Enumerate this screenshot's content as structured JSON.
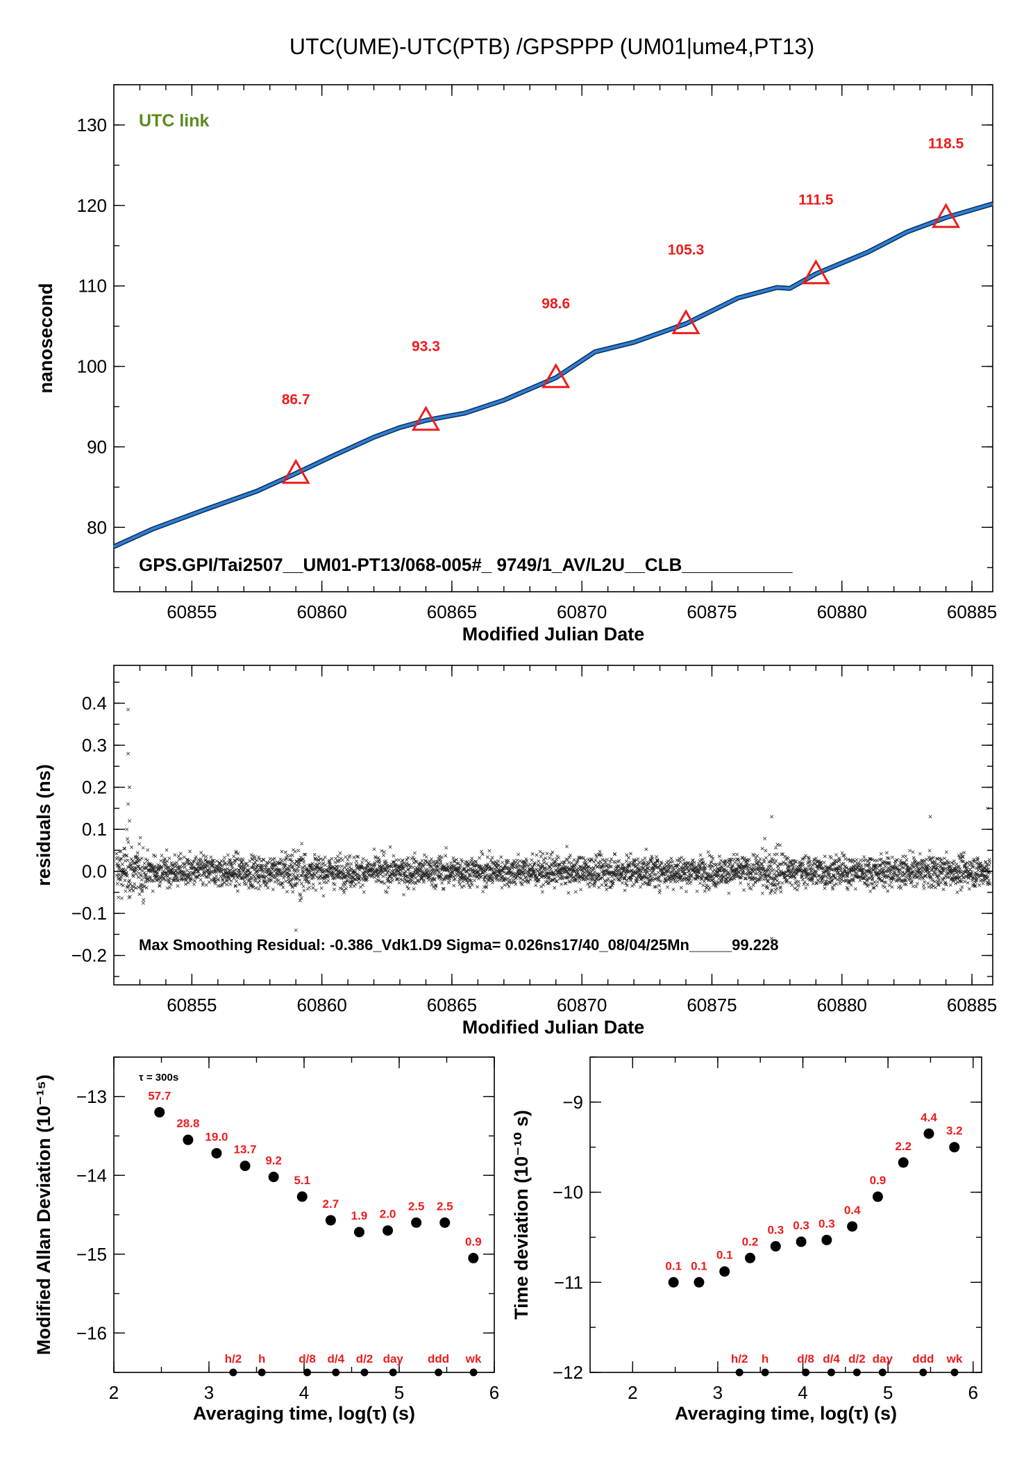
{
  "title": "UTC(UME)-UTC(PTB)  /GPSPPP  (UM01|ume4,PT13)",
  "colors": {
    "line": "#2e7fd0",
    "triangle": "#ee1c1c",
    "green": "#5a8a1e",
    "red": "#ee1c1c",
    "black": "#000000"
  },
  "chart_data": [
    {
      "type": "line",
      "name": "top",
      "legend_text": "UTC link",
      "info_text": "GPS.GPI/Tai2507__UM01-PT13/068-005#_  9749/1_AV/L2U__CLB___________",
      "xlabel": "Modified Julian Date",
      "ylabel": "nanosecond",
      "xlim": [
        60852.0,
        60885.8
      ],
      "ylim": [
        72.0,
        135.0
      ],
      "xticks": [
        60855,
        60860,
        60865,
        60870,
        60875,
        60880,
        60885
      ],
      "yticks": [
        80,
        90,
        100,
        110,
        120,
        130
      ],
      "series_x": [
        60852.0,
        60853.5,
        60855.5,
        60857.5,
        60859.0,
        60860.5,
        60862.0,
        60863.0,
        60864.0,
        60865.5,
        60867.0,
        60869.0,
        60870.5,
        60872.0,
        60874.0,
        60876.0,
        60877.5,
        60878.0,
        60879.0,
        60881.0,
        60882.5,
        60884.0,
        60885.8
      ],
      "series_y": [
        77.6,
        79.8,
        82.2,
        84.5,
        86.7,
        89.0,
        91.2,
        92.4,
        93.3,
        94.2,
        95.8,
        98.6,
        101.8,
        103.0,
        105.3,
        108.5,
        109.8,
        109.7,
        111.5,
        114.2,
        116.7,
        118.5,
        120.2
      ],
      "markers": [
        {
          "x": 60859.0,
          "y": 86.7,
          "label": "86.7"
        },
        {
          "x": 60864.0,
          "y": 93.3,
          "label": "93.3"
        },
        {
          "x": 60869.0,
          "y": 98.6,
          "label": "98.6"
        },
        {
          "x": 60874.0,
          "y": 105.3,
          "label": "105.3"
        },
        {
          "x": 60879.0,
          "y": 111.5,
          "label": "111.5"
        },
        {
          "x": 60884.0,
          "y": 118.5,
          "label": "118.5"
        }
      ]
    },
    {
      "type": "scatter",
      "name": "residuals",
      "info_text": "Max Smoothing Residual: -0.386_Vdk1.D9  Sigma= 0.026ns17/40_08/04/25Mn_____99.228",
      "xlabel": "Modified Julian Date",
      "ylabel": "residuals (ns)",
      "xlim": [
        60852.0,
        60885.8
      ],
      "ylim": [
        -0.27,
        0.49
      ],
      "xticks": [
        60855,
        60860,
        60865,
        60870,
        60875,
        60880,
        60885
      ],
      "yticks": [
        -0.2,
        -0.1,
        0.0,
        0.1,
        0.2,
        0.3,
        0.4
      ],
      "sigma": 0.026
    },
    {
      "type": "scatter",
      "name": "mdev",
      "corner_text": "τ = 300s",
      "xlabel": "Averaging time, log(τ) (s)",
      "ylabel": "Modified Allan Deviation (10⁻¹⁵)",
      "xlim": [
        2.0,
        6.0
      ],
      "ylim": [
        -16.5,
        -12.5
      ],
      "xticks": [
        2,
        3,
        4,
        5,
        6
      ],
      "yticks": [
        -16,
        -15,
        -14,
        -13
      ],
      "x": [
        2.48,
        2.78,
        3.08,
        3.38,
        3.68,
        3.98,
        4.28,
        4.58,
        4.88,
        5.18,
        5.48,
        5.78
      ],
      "y": [
        -13.2,
        -13.55,
        -13.72,
        -13.88,
        -14.02,
        -14.27,
        -14.57,
        -14.72,
        -14.7,
        -14.6,
        -14.6,
        -15.05
      ],
      "labels": [
        "57.7",
        "28.8",
        "19.0",
        "13.7",
        "9.2",
        "5.1",
        "2.7",
        "1.9",
        "2.0",
        "2.5",
        "2.5",
        "0.9"
      ],
      "time_marks": [
        {
          "x": 3.255,
          "label": "h/2"
        },
        {
          "x": 3.556,
          "label": "h"
        },
        {
          "x": 4.033,
          "label": "d/8"
        },
        {
          "x": 4.334,
          "label": "d/4"
        },
        {
          "x": 4.635,
          "label": "d/2"
        },
        {
          "x": 4.936,
          "label": "day"
        },
        {
          "x": 5.413,
          "label": "ddd"
        },
        {
          "x": 5.782,
          "label": "wk"
        }
      ]
    },
    {
      "type": "scatter",
      "name": "tdev",
      "xlabel": "Averaging time, log(τ) (s)",
      "ylabel": "Time deviation (10⁻¹⁰ s)",
      "xlim": [
        1.5,
        6.1
      ],
      "ylim": [
        -12.0,
        -8.5
      ],
      "xticks": [
        2,
        3,
        4,
        5,
        6
      ],
      "yticks": [
        -12,
        -11,
        -10,
        -9
      ],
      "x": [
        2.48,
        2.78,
        3.08,
        3.38,
        3.68,
        3.98,
        4.28,
        4.58,
        4.88,
        5.18,
        5.48,
        5.78
      ],
      "y": [
        -11.0,
        -11.0,
        -10.88,
        -10.73,
        -10.6,
        -10.55,
        -10.53,
        -10.38,
        -10.05,
        -9.67,
        -9.35,
        -9.5
      ],
      "labels": [
        "0.1",
        "0.1",
        "0.1",
        "0.2",
        "0.3",
        "0.3",
        "0.3",
        "0.4",
        "0.9",
        "2.2",
        "4.4",
        "3.2"
      ],
      "time_marks": [
        {
          "x": 3.255,
          "label": "h/2"
        },
        {
          "x": 3.556,
          "label": "h"
        },
        {
          "x": 4.033,
          "label": "d/8"
        },
        {
          "x": 4.334,
          "label": "d/4"
        },
        {
          "x": 4.635,
          "label": "d/2"
        },
        {
          "x": 4.936,
          "label": "day"
        },
        {
          "x": 5.413,
          "label": "ddd"
        },
        {
          "x": 5.782,
          "label": "wk"
        }
      ]
    }
  ]
}
